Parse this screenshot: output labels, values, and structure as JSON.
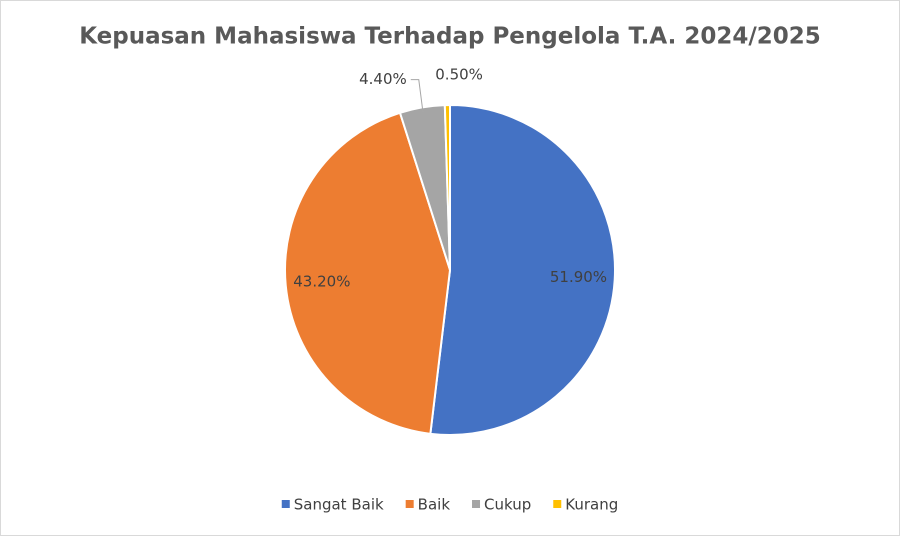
{
  "chart_data": {
    "type": "pie",
    "title": "Kepuasan Mahasiswa Terhadap Pengelola T.A. 2024/2025",
    "categories": [
      "Sangat Baik",
      "Baik",
      "Cukup",
      "Kurang"
    ],
    "values": [
      51.9,
      43.2,
      4.4,
      0.5
    ],
    "value_labels": [
      "51.90%",
      "43.20%",
      "4.40%",
      "0.50%"
    ],
    "colors": [
      "#4472c4",
      "#ed7d31",
      "#a5a5a5",
      "#ffc000"
    ],
    "legend": "bottom"
  }
}
